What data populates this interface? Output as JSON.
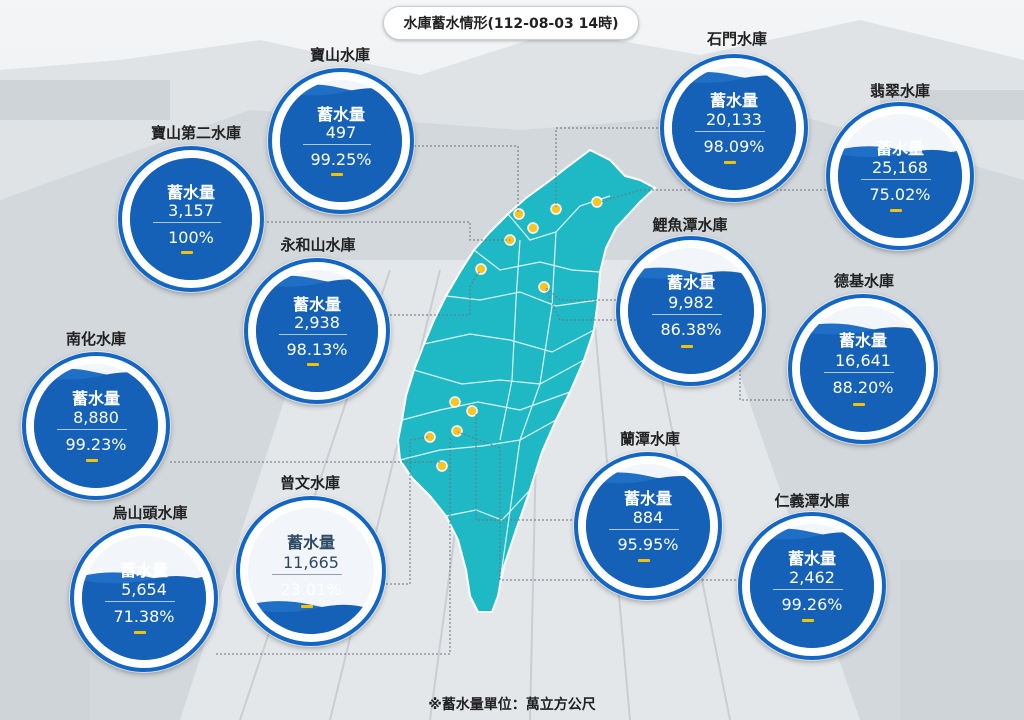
{
  "title": "水庫蓄水情形(112-08-03 14時)",
  "footnote": "※蓄水量單位：萬立方公尺",
  "volume_label": "蓄水量",
  "colors": {
    "accent": "#1266c6",
    "water": "#1f6fc7",
    "water_light": "#2d86e0",
    "map": "#1fb9c6",
    "dot": "#f7c623"
  },
  "reservoirs": [
    {
      "id": "baoshan",
      "name": "寶山水庫",
      "volume": "497",
      "percent": "99.25%",
      "level": 0.9925
    },
    {
      "id": "baoshan2",
      "name": "寶山第二水庫",
      "volume": "3,157",
      "percent": "100%",
      "level": 1.0
    },
    {
      "id": "yonghe",
      "name": "永和山水庫",
      "volume": "2,938",
      "percent": "98.13%",
      "level": 0.9813
    },
    {
      "id": "nanhua",
      "name": "南化水庫",
      "volume": "8,880",
      "percent": "99.23%",
      "level": 0.9923
    },
    {
      "id": "wushantou",
      "name": "烏山頭水庫",
      "volume": "5,654",
      "percent": "71.38%",
      "level": 0.7138
    },
    {
      "id": "zengwen",
      "name": "曾文水庫",
      "volume": "11,665",
      "percent": "23.01%",
      "level": 0.2301
    },
    {
      "id": "shimen",
      "name": "石門水庫",
      "volume": "20,133",
      "percent": "98.09%",
      "level": 0.9809
    },
    {
      "id": "feicui",
      "name": "翡翠水庫",
      "volume": "25,168",
      "percent": "75.02%",
      "level": 0.7502
    },
    {
      "id": "liyutan",
      "name": "鯉魚潭水庫",
      "volume": "9,982",
      "percent": "86.38%",
      "level": 0.8638
    },
    {
      "id": "deji",
      "name": "德基水庫",
      "volume": "16,641",
      "percent": "88.20%",
      "level": 0.882
    },
    {
      "id": "lantan",
      "name": "蘭潭水庫",
      "volume": "884",
      "percent": "95.95%",
      "level": 0.9595
    },
    {
      "id": "renyitan",
      "name": "仁義潭水庫",
      "volume": "2,462",
      "percent": "99.26%",
      "level": 0.9926
    }
  ]
}
